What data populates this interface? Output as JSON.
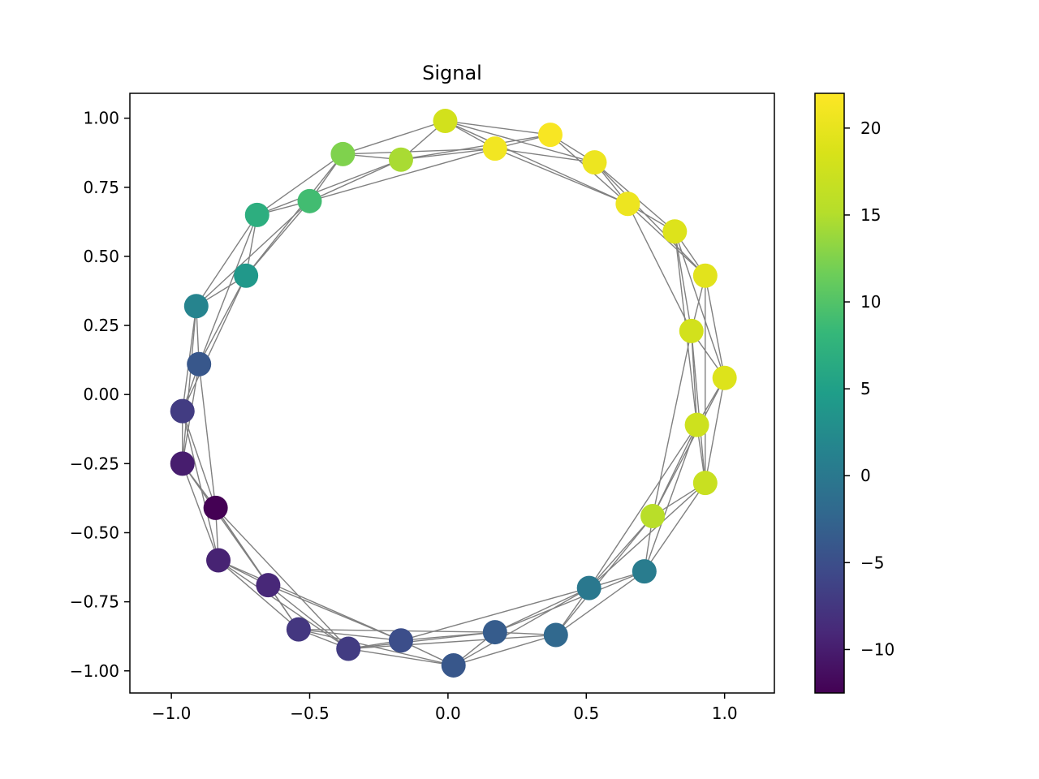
{
  "chart_data": {
    "type": "scatter",
    "title": "Signal",
    "xlabel": "",
    "ylabel": "",
    "xlim": [
      -1.15,
      1.18
    ],
    "ylim": [
      -1.08,
      1.09
    ],
    "x_ticks": [
      -1.0,
      -0.5,
      0.0,
      0.5,
      1.0
    ],
    "x_tick_labels": [
      "−1.0",
      "−0.5",
      "0.0",
      "0.5",
      "1.0"
    ],
    "y_ticks": [
      1.0,
      0.75,
      0.5,
      0.25,
      0.0,
      -0.25,
      -0.5,
      -0.75,
      -1.0
    ],
    "y_tick_labels": [
      "1.00",
      "0.75",
      "0.50",
      "0.25",
      "0.00",
      "−0.25",
      "−0.50",
      "−0.75",
      "−1.00"
    ],
    "grid": false,
    "colormap": "viridis",
    "colorbar": {
      "range": [
        -12.5,
        22
      ],
      "ticks": [
        20,
        15,
        10,
        5,
        0,
        -5,
        -10
      ],
      "tick_labels": [
        "20",
        "15",
        "10",
        "5",
        "0",
        "−5",
        "−10"
      ]
    },
    "edge_color": "#808080",
    "nodes": [
      {
        "x": -0.01,
        "y": 0.99,
        "value": 18.0
      },
      {
        "x": 0.17,
        "y": 0.89,
        "value": 21.0
      },
      {
        "x": 0.37,
        "y": 0.94,
        "value": 21.5
      },
      {
        "x": 0.53,
        "y": 0.84,
        "value": 20.5
      },
      {
        "x": 0.65,
        "y": 0.69,
        "value": 20.5
      },
      {
        "x": 0.82,
        "y": 0.59,
        "value": 19.0
      },
      {
        "x": 0.93,
        "y": 0.43,
        "value": 19.5
      },
      {
        "x": 0.88,
        "y": 0.23,
        "value": 18.0
      },
      {
        "x": 1.0,
        "y": 0.06,
        "value": 19.0
      },
      {
        "x": 0.9,
        "y": -0.11,
        "value": 17.5
      },
      {
        "x": 0.93,
        "y": -0.32,
        "value": 17.0
      },
      {
        "x": 0.74,
        "y": -0.44,
        "value": 15.5
      },
      {
        "x": 0.71,
        "y": -0.64,
        "value": 0.5
      },
      {
        "x": 0.51,
        "y": -0.7,
        "value": 0.0
      },
      {
        "x": 0.39,
        "y": -0.87,
        "value": -2.0
      },
      {
        "x": 0.17,
        "y": -0.86,
        "value": -3.5
      },
      {
        "x": 0.02,
        "y": -0.98,
        "value": -4.0
      },
      {
        "x": -0.17,
        "y": -0.89,
        "value": -5.0
      },
      {
        "x": -0.36,
        "y": -0.92,
        "value": -7.0
      },
      {
        "x": -0.54,
        "y": -0.85,
        "value": -7.5
      },
      {
        "x": -0.65,
        "y": -0.69,
        "value": -9.0
      },
      {
        "x": -0.83,
        "y": -0.6,
        "value": -9.5
      },
      {
        "x": -0.84,
        "y": -0.41,
        "value": -12.5
      },
      {
        "x": -0.96,
        "y": -0.25,
        "value": -10.0
      },
      {
        "x": -0.96,
        "y": -0.06,
        "value": -7.0
      },
      {
        "x": -0.9,
        "y": 0.11,
        "value": -4.0
      },
      {
        "x": -0.91,
        "y": 0.32,
        "value": 1.5
      },
      {
        "x": -0.73,
        "y": 0.43,
        "value": 4.0
      },
      {
        "x": -0.69,
        "y": 0.65,
        "value": 7.0
      },
      {
        "x": -0.5,
        "y": 0.7,
        "value": 9.0
      },
      {
        "x": -0.38,
        "y": 0.87,
        "value": 12.5
      },
      {
        "x": -0.17,
        "y": 0.85,
        "value": 14.5
      }
    ],
    "edges": [
      [
        0,
        1
      ],
      [
        0,
        2
      ],
      [
        0,
        3
      ],
      [
        0,
        30
      ],
      [
        0,
        31
      ],
      [
        0,
        4
      ],
      [
        1,
        2
      ],
      [
        1,
        3
      ],
      [
        1,
        31
      ],
      [
        1,
        30
      ],
      [
        1,
        29
      ],
      [
        1,
        4
      ],
      [
        2,
        3
      ],
      [
        2,
        4
      ],
      [
        2,
        31
      ],
      [
        3,
        4
      ],
      [
        3,
        5
      ],
      [
        3,
        6
      ],
      [
        4,
        5
      ],
      [
        4,
        6
      ],
      [
        4,
        7
      ],
      [
        5,
        6
      ],
      [
        5,
        7
      ],
      [
        5,
        8
      ],
      [
        5,
        9
      ],
      [
        6,
        7
      ],
      [
        6,
        8
      ],
      [
        6,
        10
      ],
      [
        7,
        8
      ],
      [
        7,
        9
      ],
      [
        7,
        10
      ],
      [
        7,
        11
      ],
      [
        8,
        9
      ],
      [
        8,
        10
      ],
      [
        8,
        11
      ],
      [
        9,
        10
      ],
      [
        9,
        11
      ],
      [
        9,
        12
      ],
      [
        9,
        13
      ],
      [
        10,
        11
      ],
      [
        10,
        12
      ],
      [
        10,
        13
      ],
      [
        11,
        12
      ],
      [
        11,
        13
      ],
      [
        11,
        14
      ],
      [
        12,
        13
      ],
      [
        12,
        14
      ],
      [
        12,
        15
      ],
      [
        13,
        14
      ],
      [
        13,
        15
      ],
      [
        13,
        16
      ],
      [
        13,
        17
      ],
      [
        14,
        15
      ],
      [
        14,
        16
      ],
      [
        14,
        18
      ],
      [
        15,
        16
      ],
      [
        15,
        17
      ],
      [
        15,
        18
      ],
      [
        15,
        19
      ],
      [
        16,
        17
      ],
      [
        16,
        18
      ],
      [
        16,
        19
      ],
      [
        17,
        18
      ],
      [
        17,
        19
      ],
      [
        17,
        20
      ],
      [
        17,
        21
      ],
      [
        18,
        19
      ],
      [
        18,
        20
      ],
      [
        18,
        21
      ],
      [
        18,
        22
      ],
      [
        19,
        20
      ],
      [
        19,
        21
      ],
      [
        19,
        22
      ],
      [
        20,
        21
      ],
      [
        20,
        22
      ],
      [
        20,
        23
      ],
      [
        21,
        22
      ],
      [
        21,
        23
      ],
      [
        21,
        24
      ],
      [
        22,
        23
      ],
      [
        22,
        24
      ],
      [
        22,
        25
      ],
      [
        23,
        24
      ],
      [
        23,
        25
      ],
      [
        23,
        26
      ],
      [
        24,
        25
      ],
      [
        24,
        26
      ],
      [
        24,
        27
      ],
      [
        25,
        26
      ],
      [
        25,
        27
      ],
      [
        25,
        28
      ],
      [
        26,
        27
      ],
      [
        26,
        28
      ],
      [
        26,
        29
      ],
      [
        27,
        28
      ],
      [
        27,
        29
      ],
      [
        27,
        30
      ],
      [
        28,
        29
      ],
      [
        28,
        30
      ],
      [
        28,
        31
      ],
      [
        29,
        30
      ],
      [
        29,
        31
      ],
      [
        30,
        31
      ]
    ]
  }
}
